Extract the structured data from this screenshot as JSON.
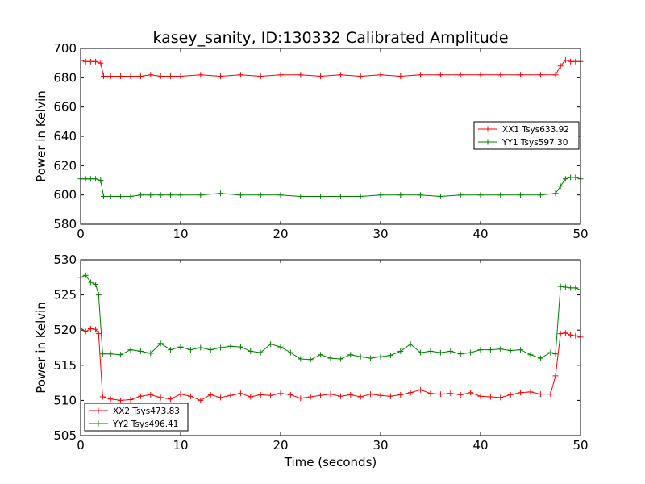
{
  "title": "kasey_sanity, ID:130332 Calibrated Amplitude",
  "colors": {
    "red": "#ff0000",
    "green": "#008000"
  },
  "chart_data": [
    {
      "type": "line",
      "title": "kasey_sanity, ID:130332 Calibrated Amplitude",
      "xlabel": "",
      "ylabel": "Power in Kelvin",
      "xlim": [
        0,
        50
      ],
      "ylim": [
        580,
        700
      ],
      "xticks": [
        "0",
        "10",
        "20",
        "30",
        "40",
        "50"
      ],
      "yticks": [
        "580",
        "600",
        "620",
        "640",
        "660",
        "680",
        "700"
      ],
      "grid": false,
      "legend_position": "center-right",
      "series": [
        {
          "name": "XX1 Tsys633.92",
          "color": "#ff0000",
          "x": [
            0.0,
            0.5,
            1.0,
            1.5,
            2.0,
            2.3,
            3,
            4,
            5,
            6,
            7,
            8,
            9,
            10,
            12,
            14,
            16,
            18,
            20,
            22,
            24,
            26,
            28,
            30,
            32,
            34,
            36,
            38,
            40,
            42,
            44,
            46,
            47.5,
            48.0,
            48.5,
            49.0,
            49.5,
            50.0
          ],
          "values": [
            692,
            691,
            691,
            691,
            690,
            681,
            681,
            681,
            681,
            681,
            682,
            681,
            681,
            681,
            682,
            681,
            682,
            681,
            682,
            682,
            681,
            682,
            681,
            682,
            681,
            682,
            682,
            682,
            682,
            682,
            682,
            682,
            682,
            688,
            692,
            691,
            691,
            691
          ]
        },
        {
          "name": "YY1 Tsys597.30",
          "color": "#008000",
          "x": [
            0.0,
            0.5,
            1.0,
            1.5,
            2.0,
            2.3,
            3,
            4,
            5,
            6,
            7,
            8,
            9,
            10,
            12,
            14,
            16,
            18,
            20,
            22,
            24,
            26,
            28,
            30,
            32,
            34,
            36,
            38,
            40,
            42,
            44,
            46,
            47.5,
            48.0,
            48.5,
            49.0,
            49.5,
            50.0
          ],
          "values": [
            611,
            611,
            611,
            611,
            610,
            599,
            599,
            599,
            599,
            600,
            600,
            600,
            600,
            600,
            600,
            601,
            600,
            600,
            600,
            599,
            599,
            599,
            599,
            600,
            600,
            600,
            599,
            600,
            600,
            600,
            600,
            600,
            601,
            606,
            611,
            612,
            612,
            611
          ]
        }
      ]
    },
    {
      "type": "line",
      "title": "",
      "xlabel": "Time (seconds)",
      "ylabel": "Power in Kelvin",
      "xlim": [
        0,
        50
      ],
      "ylim": [
        505,
        530
      ],
      "xticks": [
        "0",
        "10",
        "20",
        "30",
        "40",
        "50"
      ],
      "yticks": [
        "505",
        "510",
        "515",
        "520",
        "525",
        "530"
      ],
      "grid": false,
      "legend_position": "lower-left",
      "series": [
        {
          "name": "XX2 Tsys473.83",
          "color": "#ff0000",
          "x": [
            0.0,
            0.5,
            1.0,
            1.5,
            1.8,
            2.2,
            3,
            4,
            5,
            6,
            7,
            8,
            9,
            10,
            11,
            12,
            13,
            14,
            15,
            16,
            17,
            18,
            19,
            20,
            21,
            22,
            23,
            24,
            25,
            26,
            27,
            28,
            29,
            30,
            31,
            32,
            33,
            34,
            35,
            36,
            37,
            38,
            39,
            40,
            41,
            42,
            43,
            44,
            45,
            46,
            47,
            47.5,
            48.0,
            48.5,
            49.0,
            49.5,
            50.0
          ],
          "values": [
            520.3,
            519.8,
            520.2,
            520.1,
            519.5,
            510.5,
            510.2,
            510.0,
            510.1,
            510.6,
            510.8,
            510.4,
            510.2,
            510.9,
            510.6,
            510.0,
            510.8,
            510.4,
            510.7,
            511.0,
            510.5,
            510.8,
            510.7,
            511.0,
            510.8,
            510.3,
            510.5,
            510.7,
            510.9,
            510.6,
            510.8,
            510.5,
            510.9,
            510.7,
            510.6,
            510.8,
            511.1,
            511.5,
            511.0,
            510.9,
            511.0,
            510.8,
            511.1,
            510.6,
            510.5,
            510.4,
            510.8,
            511.1,
            511.2,
            510.9,
            510.9,
            513.5,
            519.5,
            519.6,
            519.3,
            519.2,
            519.0
          ]
        },
        {
          "name": "YY2 Tsys496.41",
          "color": "#008000",
          "x": [
            0.0,
            0.5,
            1.0,
            1.5,
            1.8,
            2.2,
            3,
            4,
            5,
            6,
            7,
            8,
            9,
            10,
            11,
            12,
            13,
            14,
            15,
            16,
            17,
            18,
            19,
            20,
            21,
            22,
            23,
            24,
            25,
            26,
            27,
            28,
            29,
            30,
            31,
            32,
            33,
            34,
            35,
            36,
            37,
            38,
            39,
            40,
            41,
            42,
            43,
            44,
            45,
            46,
            47,
            47.5,
            48.0,
            48.5,
            49.0,
            49.5,
            50.0
          ],
          "values": [
            527.5,
            527.8,
            526.8,
            526.5,
            525.0,
            516.6,
            516.6,
            516.5,
            517.2,
            517.0,
            516.7,
            518.1,
            517.2,
            517.6,
            517.2,
            517.5,
            517.2,
            517.5,
            517.7,
            517.6,
            517.0,
            516.8,
            518.0,
            517.6,
            516.8,
            515.9,
            515.8,
            516.5,
            516.0,
            515.9,
            516.5,
            516.2,
            516.0,
            516.2,
            516.4,
            517.0,
            518.0,
            516.8,
            517.0,
            516.8,
            517.0,
            516.6,
            516.8,
            517.2,
            517.2,
            517.3,
            517.1,
            517.2,
            516.5,
            516.0,
            516.8,
            516.6,
            526.2,
            526.1,
            526.0,
            526.0,
            525.7
          ]
        }
      ]
    }
  ]
}
